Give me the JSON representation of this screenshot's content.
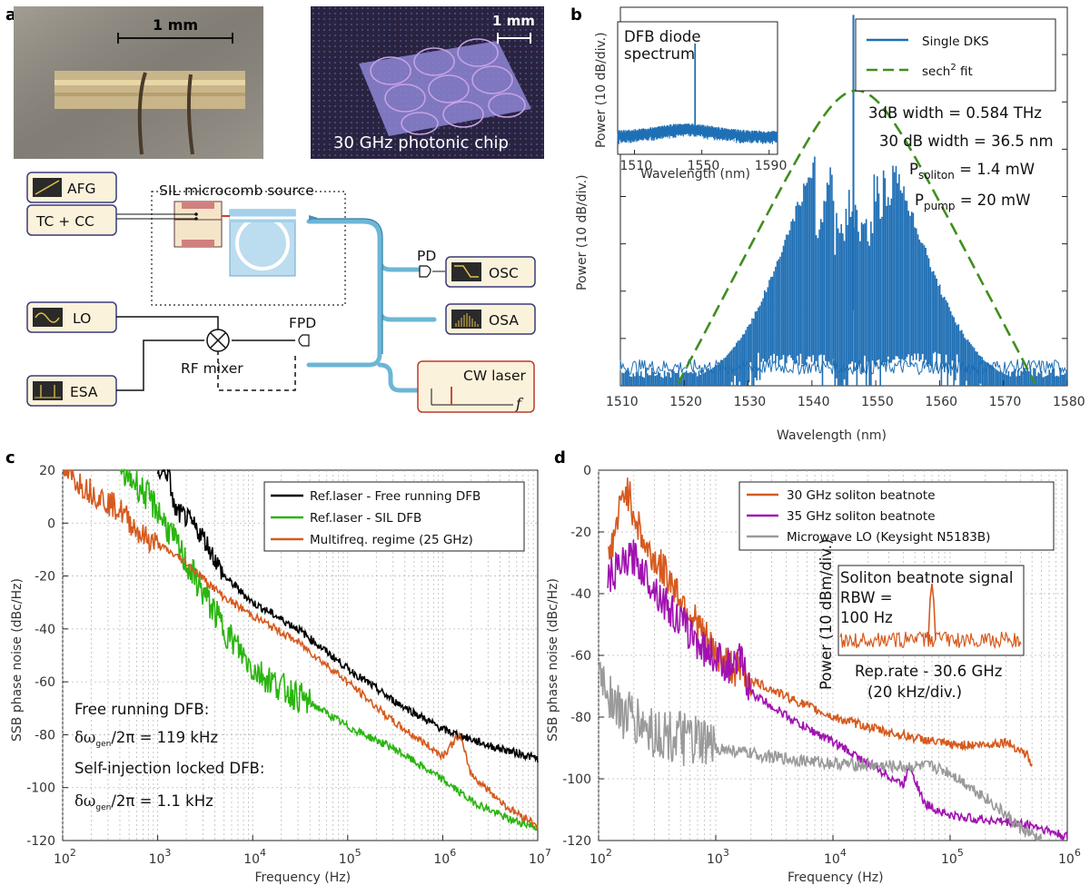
{
  "panels": {
    "a": "a",
    "b": "b",
    "c": "c",
    "d": "d"
  },
  "photos": {
    "left_scale": "1 mm",
    "right_scale": "1 mm",
    "chip_label": "30 GHz photonic chip"
  },
  "schematic": {
    "afg": "AFG",
    "tccc": "TC + CC",
    "source": "SIL microcomb source",
    "lo": "LO",
    "esa": "ESA",
    "mixer": "RF mixer",
    "fpd": "FPD",
    "pd": "PD",
    "osc": "OSC",
    "osa": "OSA",
    "cw": "CW laser",
    "f": "f"
  },
  "colors": {
    "blue": "#1f6fb5",
    "green_dash": "#3f8f1f",
    "black": "#000000",
    "green": "#2ab510",
    "orange": "#d65a1e",
    "purple": "#a012b0",
    "gray": "#9a9a9a",
    "box_fill": "#fbf2dc",
    "box_stroke": "#3b3a7a",
    "cw_stroke": "#c0392b",
    "fiber": "#6cb6d6"
  },
  "chart_data": [
    {
      "id": "b",
      "type": "line",
      "xlabel": "Wavelength (nm)",
      "ylabel": "Power (10 dB/div.)",
      "xlim": [
        1510,
        1580
      ],
      "xticks": [
        1510,
        1520,
        1530,
        1540,
        1550,
        1560,
        1570,
        1580
      ],
      "y_unit": "dB",
      "ylim": [
        0,
        100
      ],
      "series": [
        {
          "name": "Single DKS",
          "style": "solid",
          "color": "#1f6fb5",
          "center": 1546.5,
          "sigma_nm": 9.0,
          "peak": 75,
          "pump_peak": 98
        },
        {
          "name": "sech",
          "style": "dashed",
          "color": "#3f8f1f",
          "range": [
            1519,
            1575
          ]
        }
      ],
      "legend": {
        "position": "top-right",
        "entries": [
          "Single DKS",
          "sech",
          "2",
          " fit"
        ]
      },
      "annotations": {
        "w3": "3dB width = 0.584 THz",
        "w30": "30 dB width = 36.5 nm",
        "psol_main": "P",
        "psol_sub": "soliton",
        "psol_val": " = 1.4 mW",
        "ppump_main": "P",
        "ppump_sub": "pump",
        "ppump_val": " = 20 mW"
      },
      "inset": {
        "title1": "DFB diode",
        "title2": "spectrum",
        "xlabel": "Wavelength (nm)",
        "ylabel": "Power (10 dB/div.)",
        "xlim": [
          1500,
          1595
        ],
        "xticks": [
          1510,
          1550,
          1590
        ],
        "peak_x": 1546
      }
    },
    {
      "id": "c",
      "type": "line",
      "xscale": "log",
      "xlim": [
        100,
        10000000
      ],
      "ylim": [
        -120,
        20
      ],
      "xticks_exp": [
        "2",
        "3",
        "4",
        "5",
        "6",
        "7"
      ],
      "xtick_base": "10",
      "yticks": [
        20,
        0,
        -20,
        -40,
        -60,
        -80,
        -100,
        -120
      ],
      "xlabel": "Frequency (Hz)",
      "ylabel": "SSB phase noise (dBc/Hz)",
      "series": [
        {
          "name": "Ref.laser - Free running DFB",
          "color": "#000000",
          "points": [
            [
              1000,
              20
            ],
            [
              1300,
              19
            ],
            [
              1500,
              5
            ],
            [
              2000,
              2
            ],
            [
              3000,
              -5
            ],
            [
              5000,
              -20
            ],
            [
              10000,
              -30
            ],
            [
              30000,
              -40
            ],
            [
              100000,
              -55
            ],
            [
              300000,
              -67
            ],
            [
              1000000,
              -78
            ],
            [
              3000000,
              -84
            ],
            [
              10000000,
              -89
            ]
          ]
        },
        {
          "name": "Ref.laser - SIL DFB",
          "color": "#2ab510",
          "points": [
            [
              400,
              20
            ],
            [
              600,
              15
            ],
            [
              1000,
              5
            ],
            [
              2000,
              -15
            ],
            [
              5000,
              -40
            ],
            [
              10000,
              -55
            ],
            [
              20000,
              -62
            ],
            [
              50000,
              -70
            ],
            [
              100000,
              -77
            ],
            [
              300000,
              -85
            ],
            [
              1000000,
              -97
            ],
            [
              2000000,
              -105
            ],
            [
              5000000,
              -112
            ],
            [
              10000000,
              -115
            ]
          ]
        },
        {
          "name": "Multifreq. regime (25 GHz)",
          "color": "#d65a1e",
          "points": [
            [
              100,
              20
            ],
            [
              200,
              12
            ],
            [
              400,
              5
            ],
            [
              700,
              -5
            ],
            [
              1000,
              -8
            ],
            [
              2000,
              -15
            ],
            [
              5000,
              -28
            ],
            [
              10000,
              -35
            ],
            [
              30000,
              -45
            ],
            [
              100000,
              -60
            ],
            [
              300000,
              -75
            ],
            [
              1000000,
              -88
            ],
            [
              1500000,
              -80
            ],
            [
              2000000,
              -95
            ],
            [
              5000000,
              -108
            ],
            [
              10000000,
              -114
            ]
          ]
        }
      ],
      "legend": {
        "position": "top-right"
      },
      "annotations": {
        "free1": "Free running DFB:",
        "free2_greek": "δω",
        "free2_sub": "gen",
        "free2_rest": "/2π = 119 kHz",
        "sil1": "Self-injection locked DFB:",
        "sil2_greek": "δω",
        "sil2_sub": "gen",
        "sil2_rest": "/2π = 1.1 kHz"
      }
    },
    {
      "id": "d",
      "type": "line",
      "xscale": "log",
      "xlim": [
        100,
        1000000
      ],
      "ylim": [
        -120,
        0
      ],
      "xticks_exp": [
        "2",
        "3",
        "4",
        "5",
        "6"
      ],
      "xtick_base": "10",
      "yticks": [
        0,
        -20,
        -40,
        -60,
        -80,
        -100,
        -120
      ],
      "xlabel": "Frequency (Hz)",
      "ylabel": "SSB phase noise (dBc/Hz)",
      "series": [
        {
          "name": "30 GHz soliton beatnote",
          "color": "#d65a1e",
          "points": [
            [
              120,
              -30
            ],
            [
              170,
              -5
            ],
            [
              250,
              -25
            ],
            [
              400,
              -35
            ],
            [
              700,
              -50
            ],
            [
              1000,
              -60
            ],
            [
              2000,
              -68
            ],
            [
              5000,
              -75
            ],
            [
              10000,
              -80
            ],
            [
              30000,
              -85
            ],
            [
              100000,
              -89
            ],
            [
              200000,
              -89
            ],
            [
              300000,
              -88
            ],
            [
              450000,
              -92
            ],
            [
              500000,
              -96
            ]
          ]
        },
        {
          "name": "35 GHz soliton beatnote",
          "color": "#a012b0",
          "points": [
            [
              120,
              -35
            ],
            [
              200,
              -28
            ],
            [
              400,
              -45
            ],
            [
              800,
              -58
            ],
            [
              1500,
              -65
            ],
            [
              1600,
              -60
            ],
            [
              2000,
              -72
            ],
            [
              5000,
              -82
            ],
            [
              10000,
              -88
            ],
            [
              20000,
              -95
            ],
            [
              40000,
              -102
            ],
            [
              45000,
              -95
            ],
            [
              60000,
              -108
            ],
            [
              100000,
              -112
            ],
            [
              300000,
              -114
            ],
            [
              500000,
              -115
            ],
            [
              1000000,
              -119
            ]
          ]
        },
        {
          "name": "Microwave LO (Keysight N5183B)",
          "color": "#9a9a9a",
          "points": [
            [
              100,
              -65
            ],
            [
              150,
              -78
            ],
            [
              300,
              -85
            ],
            [
              1000,
              -90
            ],
            [
              3000,
              -93
            ],
            [
              10000,
              -95
            ],
            [
              30000,
              -96
            ],
            [
              70000,
              -96
            ],
            [
              100000,
              -98
            ],
            [
              200000,
              -106
            ],
            [
              400000,
              -116
            ],
            [
              600000,
              -120
            ]
          ]
        }
      ],
      "legend": {
        "position": "top-right"
      },
      "inset": {
        "title": "Soliton beatnote signal",
        "rbw1": "RBW =",
        "rbw2": "100 Hz",
        "ylabel": "Power (10 dBm/div.)",
        "xlabel1": "Rep.rate - 30.6 GHz",
        "xlabel2": "(20 kHz/div.)"
      }
    }
  ]
}
